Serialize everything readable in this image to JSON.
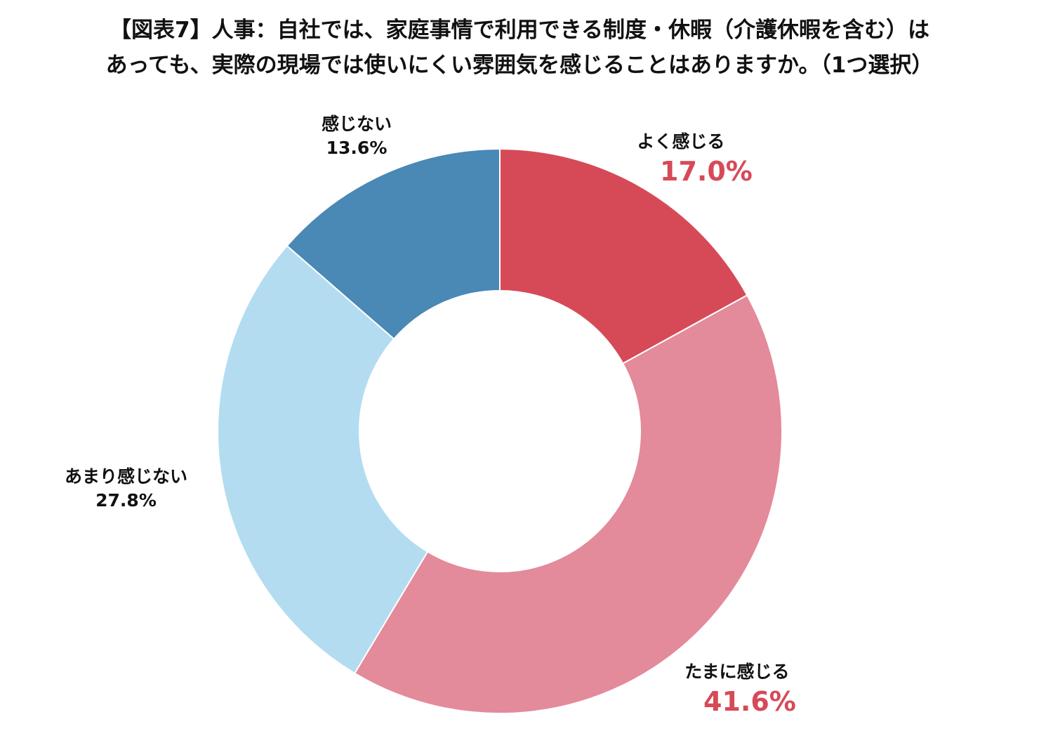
{
  "title": {
    "line1": "【図表7】人事：自社では、家庭事情で利用できる制度・休暇（介護休暇を含む）は",
    "line2": "あっても、実際の現場では使いにくい雰囲気を感じることはありますか。（1つ選択）"
  },
  "colors": {
    "slice_1": "#d64a58",
    "slice_2": "#e38a9b",
    "slice_3": "#b3dcf0",
    "slice_4": "#4a88b5",
    "accent_pct": "#d64a58"
  },
  "chart_data": {
    "type": "pie",
    "donut": true,
    "start_angle_deg": 0,
    "direction": "clockwise",
    "categories": [
      "よく感じる",
      "たまに感じる",
      "あまり感じない",
      "感じない"
    ],
    "values": [
      17.0,
      41.6,
      27.8,
      13.6
    ],
    "value_labels": [
      "17.0%",
      "41.6%",
      "27.8%",
      "13.6%"
    ],
    "unit": "%"
  }
}
